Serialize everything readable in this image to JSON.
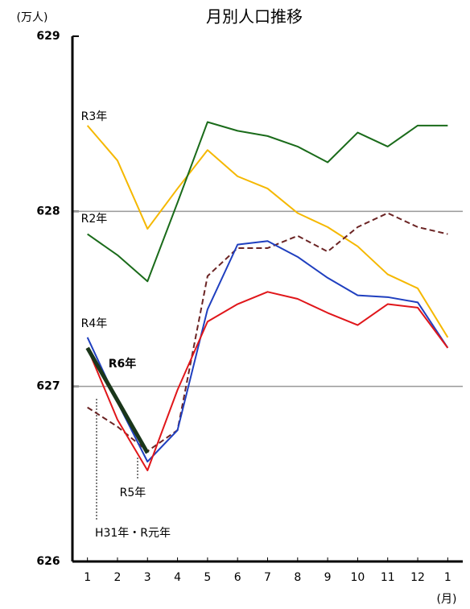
{
  "chart_data": {
    "type": "line",
    "title": "月別人口推移",
    "y_unit": "(万人)",
    "x_unit": "(月)",
    "categories": [
      "1",
      "2",
      "3",
      "4",
      "5",
      "6",
      "7",
      "8",
      "9",
      "10",
      "11",
      "12",
      "1"
    ],
    "ylim": [
      626,
      629
    ],
    "yticks": [
      626,
      627,
      628,
      629
    ],
    "grid": true,
    "series": [
      {
        "name": "R3年",
        "color": "#f5b800",
        "dash": false,
        "width": 2,
        "values": [
          628.49,
          628.29,
          627.9,
          628.13,
          628.35,
          628.2,
          628.13,
          627.99,
          627.91,
          627.8,
          627.64,
          627.56,
          627.28
        ]
      },
      {
        "name": "R2年",
        "color": "#1a6b1a",
        "dash": false,
        "width": 2,
        "values": [
          627.87,
          627.75,
          627.6,
          628.05,
          628.51,
          628.46,
          628.43,
          628.37,
          628.28,
          628.45,
          628.37,
          628.49,
          628.49
        ]
      },
      {
        "name": "H31年・R元年",
        "color": "#6b2424",
        "dash": true,
        "width": 2,
        "values": [
          626.88,
          626.77,
          626.63,
          626.75,
          627.63,
          627.79,
          627.79,
          627.86,
          627.77,
          627.91,
          627.99,
          627.91,
          627.87
        ]
      },
      {
        "name": "R4年",
        "color": "#1f3fbf",
        "dash": false,
        "width": 2,
        "values": [
          627.28,
          626.91,
          626.57,
          626.75,
          627.44,
          627.81,
          627.83,
          627.74,
          627.62,
          627.52,
          627.51,
          627.48,
          627.22
        ]
      },
      {
        "name": "R5年",
        "color": "#e0161a",
        "dash": false,
        "width": 2,
        "values": [
          627.22,
          626.81,
          626.52,
          626.98,
          627.37,
          627.47,
          627.54,
          627.5,
          627.42,
          627.35,
          627.47,
          627.45,
          627.22
        ]
      },
      {
        "name": "R6年",
        "color": "#1a361a",
        "dash": false,
        "width": 5,
        "values": [
          627.22,
          626.92,
          626.62,
          null,
          null,
          null,
          null,
          null,
          null,
          null,
          null,
          null,
          null
        ]
      }
    ]
  }
}
